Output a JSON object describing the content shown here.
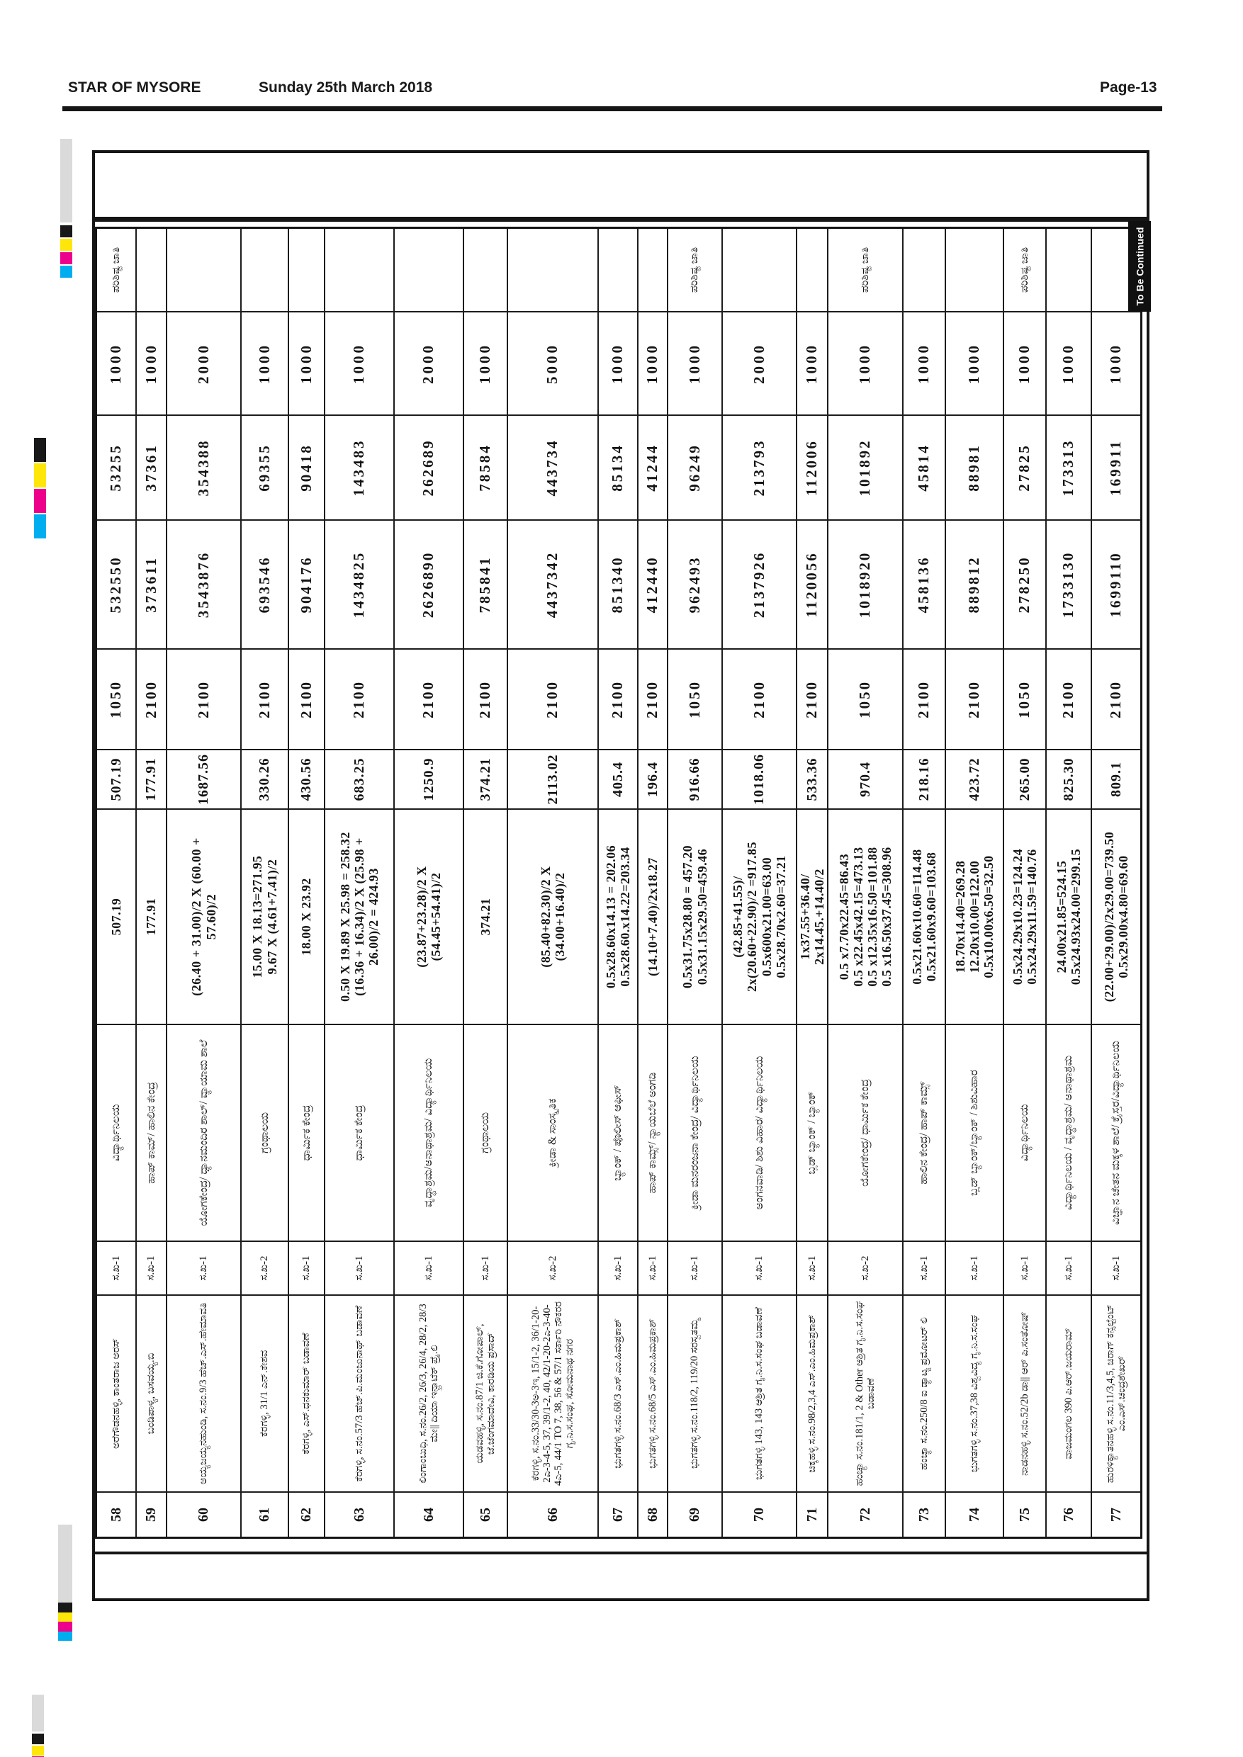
{
  "page_header": {
    "publication": "STAR OF MYSORE",
    "date": "Sunday 25th March 2018",
    "page_number": "Page-13"
  },
  "table": {
    "continuation_label": "To Be Continued",
    "rows": [
      {
        "no": "58",
        "description": "ಅರೆಗೌಡನಹಳ್ಳಿ, ಕಾಂತರಾಜ ಅರಸ್",
        "code": "ಸ.ಖ-1",
        "category": "ವಿದ್ಯಾರ್ಥಿನಿಲಯ",
        "calculation": [
          "507.19"
        ],
        "area": "507.19",
        "rate": "1050",
        "amount": "532550",
        "amount_tenth": "53255",
        "fee": "1000",
        "remark": "ಪರಿಶಿಷ್ಟ ಜಾತಿ"
      },
      {
        "no": "59",
        "description": "ಬಂಡಿಪಾಳ್ಯ, ಬಸವಯ್ಯ.ಬಿ",
        "code": "ಸ.ಖ-1",
        "category": "ಹಾಪ್ ಕಾಮ್/ ಹಾಲಿನ ಕೇಂದ್ರ",
        "calculation": [
          "177.91"
        ],
        "area": "177.91",
        "rate": "2100",
        "amount": "373611",
        "amount_tenth": "37361",
        "fee": "1000",
        "remark": ""
      },
      {
        "no": "60",
        "description": "ಅಯ್ಯಜಯ್ಯನಹುಂಡಿ, ಸ.ನಂ.9/3 ಹೆಚ್.ಎಸ್.ಹೇಮಾವತಿ",
        "code": "ಸ.ಖ-1",
        "category": "ಯೋಗಕೇಂದ್ರ/ ಧ್ಯಾನಮಂದಿರ ಶಾಲ್/ ವ್ಯಾಯಾಮ ಶಾಲೆ",
        "calculation": [
          "(26.40 + 31.00)/2 X (60.00 +",
          "57.60)/2"
        ],
        "area": "1687.56",
        "rate": "2100",
        "amount": "3543876",
        "amount_tenth": "354388",
        "fee": "2000",
        "remark": ""
      },
      {
        "no": "61",
        "description": "ಕೆರಗಳ್ಳಿ, 31/1 ಎನ್.ಕೇಶವ",
        "code": "ಸ.ಖ-2",
        "category": "ಗ್ರಂಥಾಲಯ",
        "calculation": [
          "15.00 X 18.13=271.95",
          "9.67 X (4.61+7.41)/2"
        ],
        "area": "330.26",
        "rate": "2100",
        "amount": "693546",
        "amount_tenth": "69355",
        "fee": "1000",
        "remark": ""
      },
      {
        "no": "62",
        "description": "ಕೆರಗಳ್ಳಿ, ಎಸ್.ಧನಕುಮಾರ್ ಬಡಾವಣೆ",
        "code": "ಸ.ಖ-1",
        "category": "ಧಾರ್ಮಿಕ ಕೇಂದ್ರ",
        "calculation": [
          "18.00 X 23.92"
        ],
        "area": "430.56",
        "rate": "2100",
        "amount": "904176",
        "amount_tenth": "90418",
        "fee": "1000",
        "remark": ""
      },
      {
        "no": "63",
        "description": "ಕೆರಗಳ್ಳಿ, ಸ.ನಂ.57/3 ಹೆಚ್.ಪಿ.ಮಂಜುನಾಥ್ ಬಡಾವಣೆ",
        "code": "ಸ.ಖ-1",
        "category": "ಧಾರ್ಮಿಕ ಕೇಂದ್ರ",
        "calculation": [
          "0.50 X 19.89 X 25.98 = 258.32",
          "(16.36 + 16.34)/2 X (25.98 +",
          "26.00)/2  = 424.93"
        ],
        "area": "683.25",
        "rate": "2100",
        "amount": "1434825",
        "amount_tenth": "143483",
        "fee": "1000",
        "remark": ""
      },
      {
        "no": "64",
        "description": "ಲಿಂಗಾಂಬುಧಿ, ಸ.ನಂ.26/2, 26/3, 26/4, 28/2, 28/3 ಮೇ|| ದಿಯಾ ಇನ್ಫ್ರಾಟೆಕ್ ಪ್ರೈ.ಲಿ",
        "code": "ಸ.ಖ-1",
        "category": "ವೃದ್ಧಾಶ್ರಮ/ಅನಾಥಾಶ್ರಮ/ ವಿದ್ಯಾರ್ಥಿನಿಲಯ",
        "calculation": [
          "(23.87+23.28)/2 X",
          "(54.45+54.41)/2"
        ],
        "area": "1250.9",
        "rate": "2100",
        "amount": "2626890",
        "amount_tenth": "262689",
        "fee": "2000",
        "remark": ""
      },
      {
        "no": "65",
        "description": "ಯಡವಹಳ್ಳಿ, ಸ.ನಂ.87/1 ಜಿ.ಕೆ.ಗೋಪಾಲ್, ಜೆ.ಜೆಂಗಮಾದೇವಿ, ಕಾರಡಿಯ ಪ್ರಸಾದ್",
        "code": "ಸ.ಖ-1",
        "category": "ಗ್ರಂಥಾಲಯ",
        "calculation": [
          "374.21"
        ],
        "area": "374.21",
        "rate": "2100",
        "amount": "785841",
        "amount_tenth": "78584",
        "fee": "1000",
        "remark": ""
      },
      {
        "no": "66",
        "description": "ಕೆರಗಳ್ಳಿ, ಸ.ನಂ.33/30-3ಅ-3ಇ, 15/1-2, 36/1-20-2ಎ-3-4-5, 37, 39/1-2, 40, 42/1-20-2ಎ-3-40-4ಎ-5, 44/1 TO 7, 38, 56 & 57/1 ಸರ್ಕಾರಿ ನೌಕರರ ಗೃ.ನಿ.ಸ.ಸಂಘ, ಸೋಮನಾಥ ನಗರ",
        "code": "ಸ.ಖ-2",
        "category": "ಕ್ರೀಡಾ & ಸಾಂಸ್ಕೃತಿಕ",
        "calculation": [
          "(85.40+82.30)/2 X",
          "(34.00+16.40)/2"
        ],
        "area": "2113.02",
        "rate": "2100",
        "amount": "4437342",
        "amount_tenth": "443734",
        "fee": "5000",
        "remark": ""
      },
      {
        "no": "67",
        "description": "ಭುಗತಗಳ್ಳಿ ಸ.ನಂ.68/3 ಎಸ್.ಎಂ.ಹಿಮಪ್ರಕಾಶ್",
        "code": "ಸ.ಖ-1",
        "category": "ಬ್ಯಾಂಕ್ / ಪೊಲೀಸ್ ಆಫೀಸ್",
        "calculation": [
          "0.5x28.60x14.13 = 202.06",
          "0.5x28.60.x14.22=203.34"
        ],
        "area": "405.4",
        "rate": "2100",
        "amount": "851340",
        "amount_tenth": "85134",
        "fee": "1000",
        "remark": ""
      },
      {
        "no": "68",
        "description": "ಭುಗತಗಳ್ಳಿ ಸ.ನಂ.68/5 ಎಸ್.ಎಂ.ಹಿಮಪ್ರಕಾಶ್",
        "code": "ಸ.ಖ-1",
        "category": "ಹಾಪ್ ಕಾಮ್ಸ್/ ನ್ಯಾಯಬೆಲೆ ಅಂಗಡಿ",
        "calculation": [
          "(14.10+7.40)/2x18.27"
        ],
        "area": "196.4",
        "rate": "2100",
        "amount": "412440",
        "amount_tenth": "41244",
        "fee": "1000",
        "remark": ""
      },
      {
        "no": "69",
        "description": "ಭುಗತಗಳ್ಳಿ ಸ.ನಂ.118/2, 119/20 ಸರಸ್ವತಮ್ಮ",
        "code": "ಸ.ಖ-1",
        "category": "ಕ್ರೀಡಾ ಮನರಂಜನಾ ಕೇಂದ್ರ/ ವಿದ್ಯಾರ್ಥಿನಿಲಯ",
        "calculation": [
          "0.5x31.75x28.80 = 457.20",
          "0.5x31.15x29.50=459.46"
        ],
        "area": "916.66",
        "rate": "1050",
        "amount": "962493",
        "amount_tenth": "96249",
        "fee": "1000",
        "remark": "ಪರಿಶಿಷ್ಟ ಜಾತಿ"
      },
      {
        "no": "70",
        "description": "ಭುಗತಗಳ್ಳಿ 143, 143 ಆಶ್ರಿತ ಗೃ.ನಿ.ಸ.ಸಂಘ ಬಡಾವಣೆ",
        "code": "ಸ.ಖ-1",
        "category": "ಅಂಗನವಾಡಿ/ ಶಿಶು ವಿಹಾರ/ ವಿದ್ಯಾರ್ಥಿನಿಲಯ",
        "calculation": [
          "(42.85+41.55)/",
          "2x(20.60+22.90)/2 =917.85",
          "0.5x600x21.00=63.00",
          "0.5x28.70x2.60=37.21"
        ],
        "area": "1018.06",
        "rate": "2100",
        "amount": "2137926",
        "amount_tenth": "213793",
        "fee": "2000",
        "remark": ""
      },
      {
        "no": "71",
        "description": "ಚಿಕ್ಕಹಳ್ಳಿ ಸ.ನಂ.98/2,3,4 ಎಸ್.ಎಂ.ಹಿಮಪ್ರಕಾಶ್",
        "code": "ಸ.ಖ-1",
        "category": "ಬ್ಲಡ್ ಬ್ಯಾಂಕ್ / ಬ್ಯಾಂಕ್",
        "calculation": [
          "1x37.55+36.40/",
          "2x14.45.+14.40/2"
        ],
        "area": "533.36",
        "rate": "2100",
        "amount": "1120056",
        "amount_tenth": "112006",
        "fee": "1000",
        "remark": ""
      },
      {
        "no": "72",
        "description": "ಹಂಚ್ಯಾ ಸ.ನಂ.181/1, 2 & Other ಆಶ್ರಿತ ಗೃ.ನಿ.ಸ.ಸಂಘ ಬಡಾವಣೆ",
        "code": "ಸ.ಖ-2",
        "category": "ಯೋಗಕೇಂದ್ರ/ ಧಾರ್ಮಿಕ ಕೇಂದ್ರ",
        "calculation": [
          "0.5 x7.70x22.45=86.43",
          "0.5 x22.45x42.15=473.13",
          "0.5 x12.35x16.50=101.88",
          "0.5 x16.50x37.45=308.96"
        ],
        "area": "970.4",
        "rate": "1050",
        "amount": "1018920",
        "amount_tenth": "101892",
        "fee": "1000",
        "remark": "ಪರಿಶಿಷ್ಟ ಜಾತಿ"
      },
      {
        "no": "73",
        "description": "ಹಂಚ್ಯಾ ಸ.ನಂ.250/8 ಐ ಡ್ಯಾಟ್ಯ ಪ್ರಮೋಟರ್ ಲಿ",
        "code": "ಸ.ಖ-1",
        "category": "ಹಾಲಿನ ಕೇಂದ್ರ/ ಹಾಪ್ ಕಾಮ್ಸ್",
        "calculation": [
          "0.5x21.60x10.60=114.48",
          "0.5x21.60x9.60=103.68"
        ],
        "area": "218.16",
        "rate": "2100",
        "amount": "458136",
        "amount_tenth": "45814",
        "fee": "1000",
        "remark": ""
      },
      {
        "no": "74",
        "description": "ಭುಗತಗಳ್ಳಿ ಸ.ನಂ.37,38 ವಿಶ್ವವಿದ್ಯ ಗೃ.ನಿ.ಸ.ಸಂಘ",
        "code": "ಸ.ಖ-1",
        "category": "ಬ್ಲಡ್ ಬ್ಯಾಂಕ್/ಬ್ಯಾಂಕ್ / ಶಿಶುವಿಹಾರ",
        "calculation": [
          "18.70x14.40=269.28",
          "12.20x10.00=122.00",
          "0.5x10.00x6.50=32.50"
        ],
        "area": "423.72",
        "rate": "2100",
        "amount": "889812",
        "amount_tenth": "88981",
        "fee": "1000",
        "remark": ""
      },
      {
        "no": "75",
        "description": "ನಾಡನಹಳ್ಳಿ ಸ.ನಂ.52/2b ಡಾ|| ಆರ್ ಪಿ.ಸಂತೋಷ್",
        "code": "ಸ.ಖ-1",
        "category": "ವಿದ್ಯಾರ್ಥಿನಿಲಯ",
        "calculation": [
          "0.5x24.29x10.23=124.24",
          "0.5x24.29x11.59=140.76"
        ],
        "area": "265.00",
        "rate": "1050",
        "amount": "278250",
        "amount_tenth": "27825",
        "fee": "1000",
        "remark": "ಪರಿಶಿಷ್ಟ ಜಾತಿ"
      },
      {
        "no": "76",
        "description": "ವಾಜಮಂಗಲ 390 ಪಿ.ಆರ್.ಜಯರಾಮ್",
        "code": "ಸ.ಖ-1",
        "category": "ವಿದ್ಯಾರ್ಥಿನಿಲಯ / ವೃದ್ಧಾಶ್ರಮ/ ಅನಾಥಾಶ್ರಮ",
        "calculation": [
          "24.00x21.85=524.15",
          "0.5x24.93x24.00=299.15"
        ],
        "area": "825.30",
        "rate": "2100",
        "amount": "1733130",
        "amount_tenth": "173313",
        "fee": "1000",
        "remark": ""
      },
      {
        "no": "77",
        "description": "ಹುರಳಿಕ್ಯಾತನಹಳ್ಳಿ ಸ.ನಂ.11/3,4,5, ಚಿರಾಗ್ ಕನ್ಸಲ್ಟೆಂಟ್ ಎಂ.ಎಸ್.ಚಂದ್ರಶೇಖರ್",
        "code": "ಸ.ಖ-1",
        "category": "ವಿಜ್ಞಾನ ಚೇತನ ಮಕ್ಕಳ ಶಾಲೆ/ ಕ್ರೈಸ್ತರ/ವಿದ್ಯಾರ್ಥಿನಿಲಯ",
        "calculation": [
          "(22.00+29.00)/2x29.00=739.50",
          "0.5x29.00x4.80=69.60"
        ],
        "area": "809.1",
        "rate": "2100",
        "amount": "1699110",
        "amount_tenth": "169911",
        "fee": "1000",
        "remark": ""
      }
    ]
  },
  "print_marks": {
    "colors": {
      "gray": "#dadada",
      "black": "#181818",
      "yellow": "#ffe60a",
      "magenta": "#ec008c",
      "cyan": "#00aeef"
    }
  }
}
